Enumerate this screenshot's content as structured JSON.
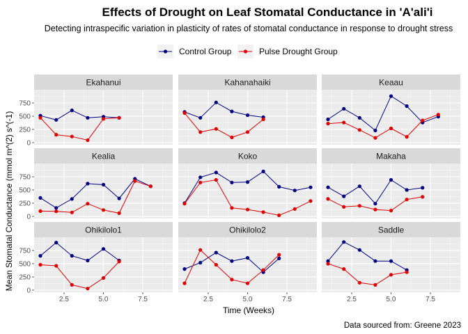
{
  "chart_data": {
    "type": "line",
    "title": "Effects of Drought on Leaf Stomatal Conductance in 'A'ali'i",
    "subtitle": "Detecting intraspecific variation in plasticity of rates of stomatal conductance in response to drought stress",
    "xlabel": "Time (Weeks)",
    "ylabel": "Mean Stomatal Conductance (mmol m^(2) s^(-1)",
    "caption": "Data sourced from: Greene 2023",
    "xlim": [
      0.6,
      9.4
    ],
    "ylim": [
      -40,
      1000
    ],
    "x_ticks": [
      2.5,
      5.0,
      7.5
    ],
    "x_tick_labels": [
      "2.5",
      "5.0",
      "7.5"
    ],
    "y_ticks": [
      0,
      250,
      500,
      750
    ],
    "y_tick_labels": [
      "0",
      "250",
      "500",
      "750"
    ],
    "grid": true,
    "legend": {
      "position": "top",
      "entries": [
        {
          "name": "Control Group",
          "color": "#000080"
        },
        {
          "name": "Pulse Drought Group",
          "color": "#e00000"
        }
      ]
    },
    "colors": {
      "control": "#000080",
      "drought": "#e00000",
      "panel_bg": "#ebebeb",
      "strip_bg": "#d9d9d9"
    },
    "panels": [
      {
        "name": "Ekahanui",
        "control": {
          "x": [
            1,
            2,
            3,
            4,
            5,
            6
          ],
          "y": [
            510,
            430,
            610,
            470,
            490,
            470
          ]
        },
        "drought": {
          "x": [
            1,
            2,
            3,
            4,
            5,
            6
          ],
          "y": [
            470,
            150,
            115,
            45,
            450,
            470
          ]
        }
      },
      {
        "name": "Kahanahaiki",
        "control": {
          "x": [
            1,
            2,
            3,
            4,
            5,
            6
          ],
          "y": [
            580,
            470,
            760,
            590,
            520,
            480
          ]
        },
        "drought": {
          "x": [
            1,
            2,
            3,
            4,
            5,
            6
          ],
          "y": [
            560,
            200,
            260,
            100,
            200,
            440
          ]
        }
      },
      {
        "name": "Keaau",
        "control": {
          "x": [
            1,
            2,
            3,
            4,
            5,
            6,
            7,
            8
          ],
          "y": [
            440,
            640,
            470,
            230,
            880,
            690,
            380,
            490
          ]
        },
        "drought": {
          "x": [
            1,
            2,
            3,
            4,
            5,
            6,
            7,
            8
          ],
          "y": [
            360,
            380,
            240,
            90,
            270,
            110,
            420,
            530
          ]
        }
      },
      {
        "name": "Kealia",
        "control": {
          "x": [
            1,
            2,
            3,
            4,
            5,
            6,
            7,
            8
          ],
          "y": [
            350,
            160,
            330,
            620,
            600,
            340,
            710,
            570
          ]
        },
        "drought": {
          "x": [
            1,
            2,
            3,
            4,
            5,
            6,
            7,
            8
          ],
          "y": [
            100,
            95,
            75,
            240,
            120,
            60,
            670,
            570
          ]
        }
      },
      {
        "name": "Koko",
        "control": {
          "x": [
            1,
            2,
            3,
            4,
            5,
            6,
            7,
            8,
            9
          ],
          "y": [
            250,
            740,
            830,
            640,
            650,
            850,
            560,
            490,
            550
          ]
        },
        "drought": {
          "x": [
            1,
            2,
            3,
            4,
            5,
            6,
            7,
            8,
            9
          ],
          "y": [
            240,
            640,
            690,
            160,
            130,
            80,
            20,
            140,
            290
          ]
        }
      },
      {
        "name": "Makaha",
        "control": {
          "x": [
            1,
            2,
            3,
            4,
            5,
            6,
            7
          ],
          "y": [
            550,
            380,
            570,
            240,
            690,
            500,
            540
          ]
        },
        "drought": {
          "x": [
            1,
            2,
            3,
            4,
            5,
            6,
            7
          ],
          "y": [
            330,
            180,
            200,
            130,
            110,
            320,
            370
          ]
        }
      },
      {
        "name": "Ohikilolo1",
        "control": {
          "x": [
            1,
            2,
            3,
            4,
            5,
            6
          ],
          "y": [
            650,
            900,
            650,
            560,
            780,
            560
          ]
        },
        "drought": {
          "x": [
            1,
            2,
            3,
            4,
            5,
            6
          ],
          "y": [
            480,
            460,
            100,
            30,
            230,
            540
          ]
        }
      },
      {
        "name": "Ohikilolo2",
        "control": {
          "x": [
            1,
            2,
            3,
            4,
            5,
            6,
            7
          ],
          "y": [
            400,
            520,
            710,
            550,
            610,
            340,
            600
          ]
        },
        "drought": {
          "x": [
            1,
            2,
            3,
            4,
            5,
            6,
            7
          ],
          "y": [
            130,
            760,
            480,
            200,
            130,
            380,
            670
          ]
        }
      },
      {
        "name": "Saddle",
        "control": {
          "x": [
            1,
            2,
            3,
            4,
            5,
            6
          ],
          "y": [
            550,
            910,
            760,
            550,
            550,
            380
          ]
        },
        "drought": {
          "x": [
            1,
            2,
            3,
            4,
            5,
            6
          ],
          "y": [
            500,
            400,
            140,
            100,
            290,
            340
          ]
        }
      }
    ]
  }
}
